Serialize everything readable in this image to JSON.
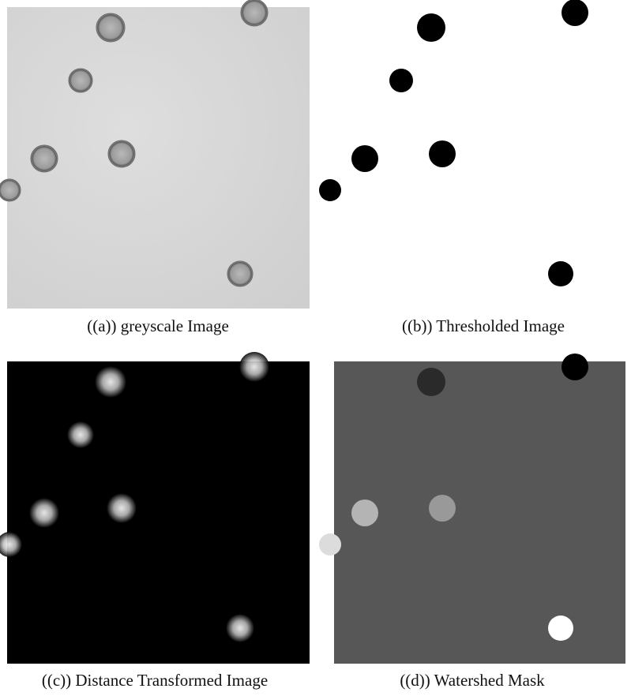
{
  "figure": {
    "panels": [
      {
        "caption": "((a)) greyscale Image"
      },
      {
        "caption": "((b)) Thresholded Image"
      },
      {
        "caption": "((c)) Distance Transformed Image"
      },
      {
        "caption": "((d)) Watershed Mask"
      }
    ]
  }
}
